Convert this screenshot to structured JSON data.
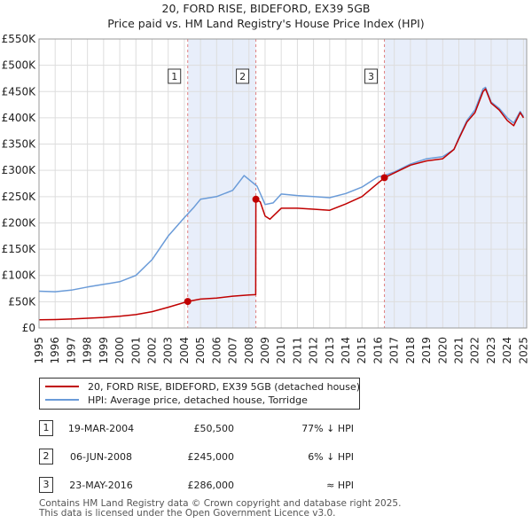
{
  "chart_data": {
    "type": "line",
    "title": "20, FORD RISE, BIDEFORD, EX39 5GB",
    "subtitle": "Price paid vs. HM Land Registry's House Price Index (HPI)",
    "xlabel": "",
    "ylabel": "",
    "xlim": [
      1995,
      2025.2
    ],
    "ylim": [
      0,
      550000
    ],
    "x_ticks": [
      "1995",
      "1996",
      "1997",
      "1998",
      "1999",
      "2000",
      "2001",
      "2002",
      "2003",
      "2004",
      "2005",
      "2006",
      "2007",
      "2008",
      "2009",
      "2010",
      "2011",
      "2012",
      "2013",
      "2014",
      "2015",
      "2016",
      "2017",
      "2018",
      "2019",
      "2020",
      "2021",
      "2022",
      "2023",
      "2024",
      "2025"
    ],
    "y_ticks": [
      {
        "value": 0,
        "label": "£0"
      },
      {
        "value": 50000,
        "label": "£50K"
      },
      {
        "value": 100000,
        "label": "£100K"
      },
      {
        "value": 150000,
        "label": "£150K"
      },
      {
        "value": 200000,
        "label": "£200K"
      },
      {
        "value": 250000,
        "label": "£250K"
      },
      {
        "value": 300000,
        "label": "£300K"
      },
      {
        "value": 350000,
        "label": "£350K"
      },
      {
        "value": 400000,
        "label": "£400K"
      },
      {
        "value": 450000,
        "label": "£450K"
      },
      {
        "value": 500000,
        "label": "£500K"
      },
      {
        "value": 550000,
        "label": "£550K"
      }
    ],
    "grid": true,
    "series": [
      {
        "name": "20, FORD RISE, BIDEFORD, EX39 5GB (detached house)",
        "color": "#c00000",
        "points": [
          [
            1995.0,
            15500
          ],
          [
            1996.0,
            16000
          ],
          [
            1997.0,
            17000
          ],
          [
            1998.0,
            18500
          ],
          [
            1999.0,
            20000
          ],
          [
            2000.0,
            22500
          ],
          [
            2001.0,
            25500
          ],
          [
            2002.0,
            31000
          ],
          [
            2003.0,
            39500
          ],
          [
            2004.21,
            50500
          ],
          [
            2005.0,
            55000
          ],
          [
            2006.0,
            57000
          ],
          [
            2007.0,
            60500
          ],
          [
            2008.0,
            63000
          ],
          [
            2008.42,
            63500
          ],
          [
            2008.43,
            245000
          ],
          [
            2008.7,
            240000
          ],
          [
            2009.0,
            213000
          ],
          [
            2009.3,
            207000
          ],
          [
            2010.0,
            228000
          ],
          [
            2011.0,
            228000
          ],
          [
            2012.0,
            226000
          ],
          [
            2013.0,
            224000
          ],
          [
            2014.0,
            236000
          ],
          [
            2015.0,
            250000
          ],
          [
            2016.39,
            286000
          ],
          [
            2017.0,
            295000
          ],
          [
            2018.0,
            310000
          ],
          [
            2019.0,
            318000
          ],
          [
            2020.0,
            322000
          ],
          [
            2020.7,
            340000
          ],
          [
            2021.0,
            360000
          ],
          [
            2021.5,
            392000
          ],
          [
            2022.0,
            410000
          ],
          [
            2022.5,
            450000
          ],
          [
            2022.65,
            455000
          ],
          [
            2023.0,
            428000
          ],
          [
            2023.5,
            415000
          ],
          [
            2024.0,
            395000
          ],
          [
            2024.4,
            385000
          ],
          [
            2024.8,
            410000
          ],
          [
            2025.0,
            400000
          ]
        ]
      },
      {
        "name": "HPI: Average price, detached house, Torridge",
        "color": "#6a9bd8",
        "points": [
          [
            1995.0,
            70000
          ],
          [
            1996.0,
            69000
          ],
          [
            1997.0,
            72000
          ],
          [
            1998.0,
            78000
          ],
          [
            1999.0,
            83000
          ],
          [
            2000.0,
            88000
          ],
          [
            2001.0,
            100000
          ],
          [
            2002.0,
            130000
          ],
          [
            2003.0,
            175000
          ],
          [
            2004.0,
            210000
          ],
          [
            2004.6,
            230000
          ],
          [
            2005.0,
            245000
          ],
          [
            2006.0,
            250000
          ],
          [
            2007.0,
            262000
          ],
          [
            2007.7,
            290000
          ],
          [
            2008.5,
            270000
          ],
          [
            2009.0,
            235000
          ],
          [
            2009.5,
            238000
          ],
          [
            2010.0,
            255000
          ],
          [
            2011.0,
            252000
          ],
          [
            2012.0,
            250000
          ],
          [
            2013.0,
            248000
          ],
          [
            2014.0,
            256000
          ],
          [
            2015.0,
            268000
          ],
          [
            2016.0,
            288000
          ],
          [
            2016.4,
            290000
          ],
          [
            2017.0,
            297000
          ],
          [
            2018.0,
            312000
          ],
          [
            2019.0,
            322000
          ],
          [
            2020.0,
            326000
          ],
          [
            2020.7,
            340000
          ],
          [
            2021.0,
            362000
          ],
          [
            2021.5,
            395000
          ],
          [
            2022.0,
            415000
          ],
          [
            2022.5,
            455000
          ],
          [
            2022.65,
            458000
          ],
          [
            2023.0,
            430000
          ],
          [
            2023.5,
            418000
          ],
          [
            2024.0,
            400000
          ],
          [
            2024.4,
            390000
          ],
          [
            2024.8,
            412000
          ],
          [
            2025.0,
            402000
          ]
        ]
      }
    ],
    "transactions": [
      {
        "id": "1",
        "x": 2004.21,
        "value": 50500
      },
      {
        "id": "2",
        "x": 2008.43,
        "value": 245000
      },
      {
        "id": "3",
        "x": 2016.39,
        "value": 286000
      }
    ],
    "shaded_spans": [
      [
        2004.21,
        2008.43
      ],
      [
        2016.39,
        2025.2
      ]
    ]
  },
  "colors": {
    "price_line": "#c00000",
    "hpi_line": "#6a9bd8",
    "shade": "#e8eefa",
    "vline": "#e08080"
  },
  "legend": {
    "price_label": "20, FORD RISE, BIDEFORD, EX39 5GB (detached house)",
    "hpi_label": "HPI: Average price, detached house, Torridge"
  },
  "table": [
    {
      "id": "1",
      "date": "19-MAR-2004",
      "price": "£50,500",
      "hpi": "77% ↓ HPI"
    },
    {
      "id": "2",
      "date": "06-JUN-2008",
      "price": "£245,000",
      "hpi": "6% ↓ HPI"
    },
    {
      "id": "3",
      "date": "23-MAY-2016",
      "price": "£286,000",
      "hpi": "≈ HPI"
    }
  ],
  "footer": {
    "line1": "Contains HM Land Registry data © Crown copyright and database right 2025.",
    "line2": "This data is licensed under the Open Government Licence v3.0."
  }
}
